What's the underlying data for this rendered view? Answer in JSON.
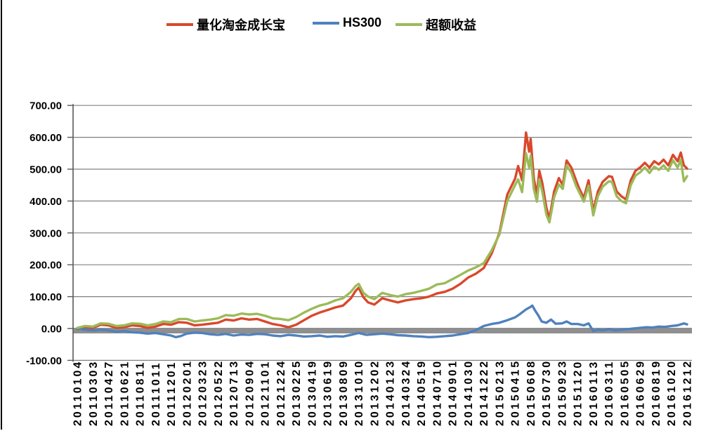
{
  "legend": {
    "items": [
      {
        "label": "量化淘金成长宝",
        "color": "#d9482b"
      },
      {
        "label": "HS300",
        "color": "#4f81bd"
      },
      {
        "label": "超额收益",
        "color": "#9bbb59"
      }
    ]
  },
  "chart_data": {
    "type": "line",
    "title": "",
    "xlabel": "",
    "ylabel": "",
    "ylim": [
      -100,
      700
    ],
    "grid": true,
    "legend_position": "top",
    "zero_band_color": "#8f8f8f",
    "grid_color": "#808080",
    "axis_color": "#595959",
    "y_tick_labels": [
      "700.00",
      "600.00",
      "500.00",
      "400.00",
      "300.00",
      "200.00",
      "100.00",
      "0.00",
      "-100.00"
    ],
    "y_tick_values": [
      700,
      600,
      500,
      400,
      300,
      200,
      100,
      0,
      -100
    ],
    "x_categories": [
      "20110104",
      "20110303",
      "20110427",
      "20110621",
      "20110811",
      "20111011",
      "20111201",
      "20120201",
      "20120323",
      "20120522",
      "20120713",
      "20120904",
      "20121101",
      "20121224",
      "20130225",
      "20130419",
      "20130619",
      "20130809",
      "20131010",
      "20131202",
      "20140123",
      "20140324",
      "20140519",
      "20140710",
      "20140901",
      "20141030",
      "20141222",
      "20150213",
      "20150415",
      "20150608",
      "20150730",
      "20150923",
      "20151120",
      "20160113",
      "20160311",
      "20160505",
      "20160629",
      "20160819",
      "20161020",
      "20161212"
    ],
    "series": [
      {
        "name": "量化淘金成长宝",
        "color": "#d9482b",
        "points": [
          [
            0,
            -2
          ],
          [
            0.5,
            4
          ],
          [
            1,
            2
          ],
          [
            1.5,
            12
          ],
          [
            2,
            10
          ],
          [
            2.5,
            2
          ],
          [
            3,
            4
          ],
          [
            3.5,
            10
          ],
          [
            4,
            8
          ],
          [
            4.5,
            2
          ],
          [
            5,
            6
          ],
          [
            5.5,
            14
          ],
          [
            6,
            12
          ],
          [
            6.5,
            20
          ],
          [
            7,
            18
          ],
          [
            7.5,
            10
          ],
          [
            8,
            12
          ],
          [
            8.5,
            15
          ],
          [
            9,
            18
          ],
          [
            9.5,
            28
          ],
          [
            10,
            25
          ],
          [
            10.5,
            32
          ],
          [
            11,
            28
          ],
          [
            11.5,
            30
          ],
          [
            12,
            22
          ],
          [
            12.5,
            14
          ],
          [
            13,
            10
          ],
          [
            13.5,
            4
          ],
          [
            14,
            12
          ],
          [
            14.5,
            26
          ],
          [
            15,
            40
          ],
          [
            15.5,
            50
          ],
          [
            16,
            58
          ],
          [
            16.5,
            66
          ],
          [
            17,
            72
          ],
          [
            17.5,
            95
          ],
          [
            17.8,
            118
          ],
          [
            18,
            128
          ],
          [
            18.3,
            98
          ],
          [
            18.6,
            82
          ],
          [
            19,
            75
          ],
          [
            19.5,
            95
          ],
          [
            20,
            88
          ],
          [
            20.5,
            82
          ],
          [
            21,
            88
          ],
          [
            21.5,
            92
          ],
          [
            22,
            95
          ],
          [
            22.5,
            100
          ],
          [
            23,
            110
          ],
          [
            23.5,
            115
          ],
          [
            24,
            125
          ],
          [
            24.5,
            140
          ],
          [
            25,
            160
          ],
          [
            25.5,
            172
          ],
          [
            26,
            190
          ],
          [
            26.5,
            235
          ],
          [
            27,
            300
          ],
          [
            27.5,
            420
          ],
          [
            28,
            470
          ],
          [
            28.2,
            510
          ],
          [
            28.45,
            465
          ],
          [
            28.7,
            615
          ],
          [
            28.9,
            555
          ],
          [
            29,
            595
          ],
          [
            29.2,
            470
          ],
          [
            29.4,
            420
          ],
          [
            29.55,
            495
          ],
          [
            29.75,
            455
          ],
          [
            30,
            380
          ],
          [
            30.2,
            345
          ],
          [
            30.5,
            430
          ],
          [
            30.8,
            472
          ],
          [
            31.05,
            450
          ],
          [
            31.3,
            527
          ],
          [
            31.6,
            505
          ],
          [
            31.9,
            465
          ],
          [
            32.1,
            440
          ],
          [
            32.4,
            410
          ],
          [
            32.7,
            465
          ],
          [
            33,
            368
          ],
          [
            33.3,
            430
          ],
          [
            33.6,
            460
          ],
          [
            34,
            478
          ],
          [
            34.2,
            476
          ],
          [
            34.5,
            430
          ],
          [
            34.8,
            415
          ],
          [
            35.1,
            405
          ],
          [
            35.4,
            465
          ],
          [
            35.7,
            495
          ],
          [
            36,
            505
          ],
          [
            36.3,
            520
          ],
          [
            36.6,
            505
          ],
          [
            36.9,
            525
          ],
          [
            37.2,
            515
          ],
          [
            37.5,
            530
          ],
          [
            37.8,
            512
          ],
          [
            38.1,
            545
          ],
          [
            38.4,
            525
          ],
          [
            38.6,
            552
          ],
          [
            38.8,
            512
          ],
          [
            39,
            502
          ]
        ]
      },
      {
        "name": "HS300",
        "color": "#4f81bd",
        "points": [
          [
            0,
            0
          ],
          [
            0.5,
            -4
          ],
          [
            1,
            -6
          ],
          [
            1.5,
            -4
          ],
          [
            2,
            -6
          ],
          [
            2.5,
            -10
          ],
          [
            3,
            -8
          ],
          [
            3.5,
            -12
          ],
          [
            4,
            -13
          ],
          [
            4.5,
            -16
          ],
          [
            5,
            -14
          ],
          [
            5.5,
            -18
          ],
          [
            6,
            -22
          ],
          [
            6.3,
            -27
          ],
          [
            6.6,
            -24
          ],
          [
            7,
            -16
          ],
          [
            7.5,
            -13
          ],
          [
            8,
            -14
          ],
          [
            8.5,
            -18
          ],
          [
            9,
            -20
          ],
          [
            9.5,
            -17
          ],
          [
            10,
            -22
          ],
          [
            10.5,
            -19
          ],
          [
            11,
            -20
          ],
          [
            11.5,
            -17
          ],
          [
            12,
            -18
          ],
          [
            12.5,
            -22
          ],
          [
            13,
            -24
          ],
          [
            13.5,
            -20
          ],
          [
            14,
            -22
          ],
          [
            14.5,
            -25
          ],
          [
            15,
            -24
          ],
          [
            15.5,
            -22
          ],
          [
            16,
            -26
          ],
          [
            16.5,
            -24
          ],
          [
            17,
            -25
          ],
          [
            17.5,
            -20
          ],
          [
            18,
            -14
          ],
          [
            18.5,
            -20
          ],
          [
            19,
            -18
          ],
          [
            19.5,
            -16
          ],
          [
            20,
            -18
          ],
          [
            20.5,
            -21
          ],
          [
            21,
            -22
          ],
          [
            21.5,
            -24
          ],
          [
            22,
            -25
          ],
          [
            22.5,
            -27
          ],
          [
            23,
            -26
          ],
          [
            23.5,
            -24
          ],
          [
            24,
            -22
          ],
          [
            24.5,
            -18
          ],
          [
            25,
            -14
          ],
          [
            25.5,
            -5
          ],
          [
            26,
            8
          ],
          [
            26.5,
            14
          ],
          [
            27,
            18
          ],
          [
            27.5,
            26
          ],
          [
            28,
            35
          ],
          [
            28.3,
            45
          ],
          [
            28.7,
            60
          ],
          [
            29,
            68
          ],
          [
            29.1,
            72
          ],
          [
            29.3,
            55
          ],
          [
            29.5,
            40
          ],
          [
            29.7,
            22
          ],
          [
            30,
            18
          ],
          [
            30.3,
            28
          ],
          [
            30.6,
            15
          ],
          [
            31,
            16
          ],
          [
            31.3,
            22
          ],
          [
            31.6,
            14
          ],
          [
            32,
            14
          ],
          [
            32.4,
            10
          ],
          [
            32.7,
            16
          ],
          [
            33,
            -8
          ],
          [
            33.3,
            -4
          ],
          [
            33.6,
            -6
          ],
          [
            34,
            -2
          ],
          [
            34.4,
            -6
          ],
          [
            34.8,
            -4
          ],
          [
            35.2,
            -2
          ],
          [
            35.6,
            0
          ],
          [
            36,
            2
          ],
          [
            36.4,
            4
          ],
          [
            36.8,
            3
          ],
          [
            37.2,
            6
          ],
          [
            37.6,
            5
          ],
          [
            38,
            8
          ],
          [
            38.4,
            10
          ],
          [
            38.8,
            16
          ],
          [
            39,
            13
          ]
        ]
      },
      {
        "name": "超额收益",
        "color": "#9bbb59",
        "points": [
          [
            0,
            2
          ],
          [
            0.5,
            8
          ],
          [
            1,
            6
          ],
          [
            1.5,
            16
          ],
          [
            2,
            15
          ],
          [
            2.5,
            8
          ],
          [
            3,
            10
          ],
          [
            3.5,
            16
          ],
          [
            4,
            15
          ],
          [
            4.5,
            10
          ],
          [
            5,
            14
          ],
          [
            5.5,
            22
          ],
          [
            6,
            20
          ],
          [
            6.5,
            30
          ],
          [
            7,
            30
          ],
          [
            7.5,
            22
          ],
          [
            8,
            25
          ],
          [
            8.5,
            28
          ],
          [
            9,
            32
          ],
          [
            9.5,
            42
          ],
          [
            10,
            40
          ],
          [
            10.5,
            47
          ],
          [
            11,
            44
          ],
          [
            11.5,
            46
          ],
          [
            12,
            40
          ],
          [
            12.5,
            32
          ],
          [
            13,
            30
          ],
          [
            13.5,
            26
          ],
          [
            14,
            36
          ],
          [
            14.5,
            50
          ],
          [
            15,
            62
          ],
          [
            15.5,
            72
          ],
          [
            16,
            78
          ],
          [
            16.5,
            88
          ],
          [
            17,
            95
          ],
          [
            17.5,
            115
          ],
          [
            17.8,
            133
          ],
          [
            18,
            140
          ],
          [
            18.3,
            112
          ],
          [
            18.6,
            100
          ],
          [
            19,
            92
          ],
          [
            19.5,
            112
          ],
          [
            20,
            105
          ],
          [
            20.5,
            100
          ],
          [
            21,
            108
          ],
          [
            21.5,
            112
          ],
          [
            22,
            118
          ],
          [
            22.5,
            125
          ],
          [
            23,
            138
          ],
          [
            23.5,
            142
          ],
          [
            24,
            155
          ],
          [
            24.5,
            168
          ],
          [
            25,
            182
          ],
          [
            25.5,
            192
          ],
          [
            26,
            205
          ],
          [
            26.5,
            245
          ],
          [
            27,
            295
          ],
          [
            27.5,
            400
          ],
          [
            28,
            450
          ],
          [
            28.2,
            468
          ],
          [
            28.45,
            428
          ],
          [
            28.7,
            550
          ],
          [
            28.9,
            505
          ],
          [
            29,
            542
          ],
          [
            29.2,
            438
          ],
          [
            29.4,
            398
          ],
          [
            29.55,
            468
          ],
          [
            29.75,
            428
          ],
          [
            30,
            358
          ],
          [
            30.2,
            333
          ],
          [
            30.5,
            412
          ],
          [
            30.8,
            452
          ],
          [
            31.05,
            438
          ],
          [
            31.3,
            512
          ],
          [
            31.6,
            488
          ],
          [
            31.9,
            448
          ],
          [
            32.1,
            428
          ],
          [
            32.4,
            398
          ],
          [
            32.7,
            448
          ],
          [
            33,
            355
          ],
          [
            33.3,
            415
          ],
          [
            33.6,
            445
          ],
          [
            34,
            462
          ],
          [
            34.2,
            460
          ],
          [
            34.5,
            415
          ],
          [
            34.8,
            400
          ],
          [
            35.1,
            393
          ],
          [
            35.4,
            450
          ],
          [
            35.7,
            480
          ],
          [
            36,
            490
          ],
          [
            36.3,
            505
          ],
          [
            36.6,
            488
          ],
          [
            36.9,
            508
          ],
          [
            37.2,
            498
          ],
          [
            37.5,
            512
          ],
          [
            37.8,
            495
          ],
          [
            38.1,
            528
          ],
          [
            38.4,
            505
          ],
          [
            38.6,
            530
          ],
          [
            38.8,
            462
          ],
          [
            39,
            478
          ]
        ]
      }
    ]
  }
}
